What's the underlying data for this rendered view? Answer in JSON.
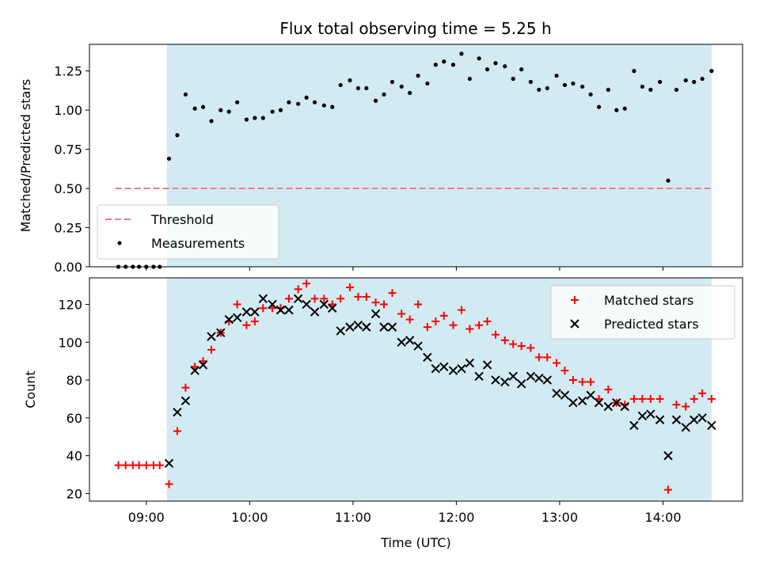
{
  "figure": {
    "title": "Flux total observing time = 5.25 h",
    "xlabel": "Time (UTC)"
  },
  "colors": {
    "shade": "#add8e6",
    "threshold": "#f08080",
    "matched": "#ff0000",
    "predicted": "#000000",
    "measurement": "#000000"
  },
  "chart_data": [
    {
      "type": "scatter",
      "ylabel": "Matched/Predicted stars",
      "xlim": [
        8.45,
        14.77
      ],
      "ylim": [
        0.0,
        1.42
      ],
      "xticks": [
        9,
        10,
        11,
        12,
        13,
        14
      ],
      "yticks": [
        0.0,
        0.25,
        0.5,
        0.75,
        1.0,
        1.25
      ],
      "ytick_labels": [
        "0.00",
        "0.25",
        "0.50",
        "0.75",
        "1.00",
        "1.25"
      ],
      "shaded_interval": [
        9.2,
        14.47
      ],
      "threshold": {
        "name": "Threshold",
        "value": 0.5,
        "x_range": [
          8.7,
          14.47
        ]
      },
      "legend": {
        "location": "lower left",
        "entries": [
          "Threshold",
          "Measurements"
        ]
      },
      "series": [
        {
          "name": "Measurements",
          "points": [
            [
              8.73,
              0.0
            ],
            [
              8.8,
              0.0
            ],
            [
              8.87,
              0.0
            ],
            [
              8.93,
              0.0
            ],
            [
              9.0,
              0.0
            ],
            [
              9.07,
              0.0
            ],
            [
              9.13,
              0.0
            ],
            [
              9.22,
              0.69
            ],
            [
              9.3,
              0.84
            ],
            [
              9.38,
              1.1
            ],
            [
              9.47,
              1.01
            ],
            [
              9.55,
              1.02
            ],
            [
              9.63,
              0.93
            ],
            [
              9.72,
              1.0
            ],
            [
              9.8,
              0.99
            ],
            [
              9.88,
              1.05
            ],
            [
              9.97,
              0.94
            ],
            [
              10.05,
              0.95
            ],
            [
              10.13,
              0.95
            ],
            [
              10.22,
              0.99
            ],
            [
              10.3,
              1.0
            ],
            [
              10.38,
              1.05
            ],
            [
              10.47,
              1.04
            ],
            [
              10.55,
              1.08
            ],
            [
              10.63,
              1.05
            ],
            [
              10.72,
              1.03
            ],
            [
              10.8,
              1.02
            ],
            [
              10.88,
              1.16
            ],
            [
              10.97,
              1.19
            ],
            [
              11.05,
              1.14
            ],
            [
              11.13,
              1.14
            ],
            [
              11.22,
              1.06
            ],
            [
              11.3,
              1.1
            ],
            [
              11.38,
              1.18
            ],
            [
              11.47,
              1.15
            ],
            [
              11.55,
              1.11
            ],
            [
              11.63,
              1.22
            ],
            [
              11.72,
              1.17
            ],
            [
              11.8,
              1.29
            ],
            [
              11.88,
              1.31
            ],
            [
              11.97,
              1.29
            ],
            [
              12.05,
              1.36
            ],
            [
              12.13,
              1.2
            ],
            [
              12.22,
              1.33
            ],
            [
              12.3,
              1.26
            ],
            [
              12.38,
              1.3
            ],
            [
              12.47,
              1.28
            ],
            [
              12.55,
              1.2
            ],
            [
              12.63,
              1.26
            ],
            [
              12.72,
              1.18
            ],
            [
              12.8,
              1.13
            ],
            [
              12.88,
              1.14
            ],
            [
              12.97,
              1.22
            ],
            [
              13.05,
              1.16
            ],
            [
              13.13,
              1.17
            ],
            [
              13.22,
              1.15
            ],
            [
              13.3,
              1.1
            ],
            [
              13.38,
              1.02
            ],
            [
              13.47,
              1.13
            ],
            [
              13.55,
              1.0
            ],
            [
              13.63,
              1.01
            ],
            [
              13.72,
              1.25
            ],
            [
              13.8,
              1.15
            ],
            [
              13.88,
              1.13
            ],
            [
              13.97,
              1.18
            ],
            [
              14.05,
              0.55
            ],
            [
              14.13,
              1.13
            ],
            [
              14.22,
              1.19
            ],
            [
              14.3,
              1.18
            ],
            [
              14.38,
              1.2
            ],
            [
              14.47,
              1.25
            ]
          ]
        }
      ]
    },
    {
      "type": "scatter",
      "ylabel": "Count",
      "xlim": [
        8.45,
        14.77
      ],
      "ylim": [
        16,
        134
      ],
      "xticks": [
        9,
        10,
        11,
        12,
        13,
        14
      ],
      "xtick_labels": [
        "09:00",
        "10:00",
        "11:00",
        "12:00",
        "13:00",
        "14:00"
      ],
      "yticks": [
        20,
        40,
        60,
        80,
        100,
        120
      ],
      "ytick_labels": [
        "20",
        "40",
        "60",
        "80",
        "100",
        "120"
      ],
      "shaded_interval": [
        9.2,
        14.47
      ],
      "legend": {
        "location": "upper right",
        "entries": [
          "Matched stars",
          "Predicted stars"
        ]
      },
      "series": [
        {
          "name": "Matched stars",
          "marker": "plus",
          "points": [
            [
              8.73,
              35
            ],
            [
              8.8,
              35
            ],
            [
              8.87,
              35
            ],
            [
              8.93,
              35
            ],
            [
              9.0,
              35
            ],
            [
              9.07,
              35
            ],
            [
              9.13,
              35
            ],
            [
              9.22,
              25
            ],
            [
              9.3,
              53
            ],
            [
              9.38,
              76
            ],
            [
              9.47,
              87
            ],
            [
              9.55,
              90
            ],
            [
              9.63,
              96
            ],
            [
              9.72,
              105
            ],
            [
              9.8,
              111
            ],
            [
              9.88,
              120
            ],
            [
              9.97,
              109
            ],
            [
              10.05,
              111
            ],
            [
              10.13,
              118
            ],
            [
              10.22,
              118
            ],
            [
              10.3,
              118
            ],
            [
              10.38,
              123
            ],
            [
              10.47,
              128
            ],
            [
              10.55,
              131
            ],
            [
              10.63,
              123
            ],
            [
              10.72,
              123
            ],
            [
              10.8,
              120
            ],
            [
              10.88,
              123
            ],
            [
              10.97,
              129
            ],
            [
              11.05,
              124
            ],
            [
              11.13,
              124
            ],
            [
              11.22,
              121
            ],
            [
              11.3,
              120
            ],
            [
              11.38,
              126
            ],
            [
              11.47,
              115
            ],
            [
              11.55,
              112
            ],
            [
              11.63,
              120
            ],
            [
              11.72,
              108
            ],
            [
              11.8,
              111
            ],
            [
              11.88,
              114
            ],
            [
              11.97,
              109
            ],
            [
              12.05,
              117
            ],
            [
              12.13,
              107
            ],
            [
              12.22,
              109
            ],
            [
              12.3,
              111
            ],
            [
              12.38,
              104
            ],
            [
              12.47,
              101
            ],
            [
              12.55,
              99
            ],
            [
              12.63,
              98
            ],
            [
              12.72,
              97
            ],
            [
              12.8,
              92
            ],
            [
              12.88,
              92
            ],
            [
              12.97,
              89
            ],
            [
              13.05,
              85
            ],
            [
              13.13,
              80
            ],
            [
              13.22,
              79
            ],
            [
              13.3,
              79
            ],
            [
              13.38,
              70
            ],
            [
              13.47,
              75
            ],
            [
              13.55,
              68
            ],
            [
              13.63,
              67
            ],
            [
              13.72,
              70
            ],
            [
              13.8,
              70
            ],
            [
              13.88,
              70
            ],
            [
              13.97,
              70
            ],
            [
              14.05,
              22
            ],
            [
              14.13,
              67
            ],
            [
              14.22,
              66
            ],
            [
              14.3,
              70
            ],
            [
              14.38,
              73
            ],
            [
              14.47,
              70
            ]
          ]
        },
        {
          "name": "Predicted stars",
          "marker": "x",
          "points": [
            [
              9.22,
              36
            ],
            [
              9.3,
              63
            ],
            [
              9.38,
              69
            ],
            [
              9.47,
              85
            ],
            [
              9.55,
              88
            ],
            [
              9.63,
              103
            ],
            [
              9.72,
              105
            ],
            [
              9.8,
              112
            ],
            [
              9.88,
              113
            ],
            [
              9.97,
              116
            ],
            [
              10.05,
              116
            ],
            [
              10.13,
              123
            ],
            [
              10.22,
              120
            ],
            [
              10.3,
              117
            ],
            [
              10.38,
              117
            ],
            [
              10.47,
              123
            ],
            [
              10.55,
              120
            ],
            [
              10.63,
              116
            ],
            [
              10.72,
              120
            ],
            [
              10.8,
              118
            ],
            [
              10.88,
              106
            ],
            [
              10.97,
              108
            ],
            [
              11.05,
              109
            ],
            [
              11.13,
              108
            ],
            [
              11.22,
              115
            ],
            [
              11.3,
              108
            ],
            [
              11.38,
              108
            ],
            [
              11.47,
              100
            ],
            [
              11.55,
              101
            ],
            [
              11.63,
              98
            ],
            [
              11.72,
              92
            ],
            [
              11.8,
              86
            ],
            [
              11.88,
              87
            ],
            [
              11.97,
              85
            ],
            [
              12.05,
              86
            ],
            [
              12.13,
              89
            ],
            [
              12.22,
              82
            ],
            [
              12.3,
              88
            ],
            [
              12.38,
              80
            ],
            [
              12.47,
              79
            ],
            [
              12.55,
              82
            ],
            [
              12.63,
              78
            ],
            [
              12.72,
              82
            ],
            [
              12.8,
              81
            ],
            [
              12.88,
              80
            ],
            [
              12.97,
              73
            ],
            [
              13.05,
              72
            ],
            [
              13.13,
              68
            ],
            [
              13.22,
              69
            ],
            [
              13.3,
              72
            ],
            [
              13.38,
              68
            ],
            [
              13.47,
              66
            ],
            [
              13.55,
              68
            ],
            [
              13.63,
              66
            ],
            [
              13.72,
              56
            ],
            [
              13.8,
              61
            ],
            [
              13.88,
              62
            ],
            [
              13.97,
              59
            ],
            [
              14.05,
              40
            ],
            [
              14.13,
              59
            ],
            [
              14.22,
              55
            ],
            [
              14.3,
              59
            ],
            [
              14.38,
              60
            ],
            [
              14.47,
              56
            ]
          ]
        }
      ]
    }
  ]
}
